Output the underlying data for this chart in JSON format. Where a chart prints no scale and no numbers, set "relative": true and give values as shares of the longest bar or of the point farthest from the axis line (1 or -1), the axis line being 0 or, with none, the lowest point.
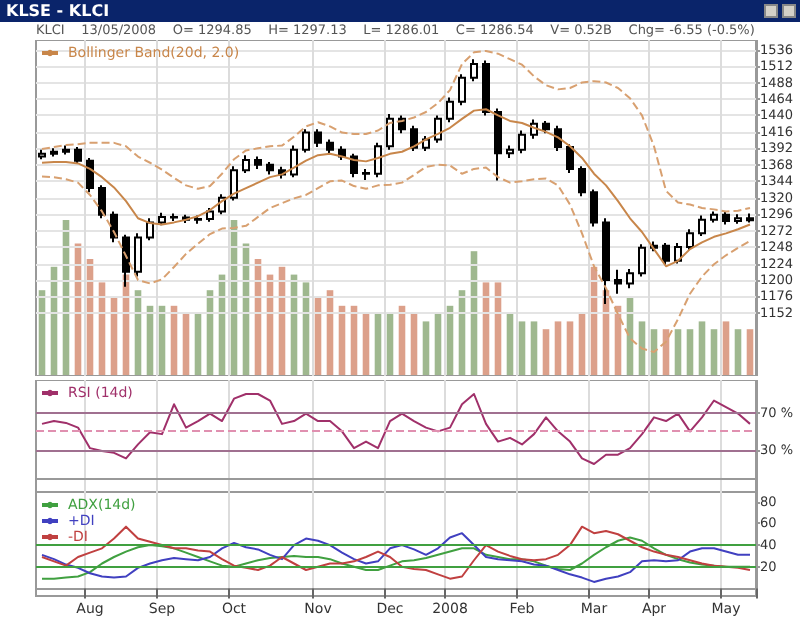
{
  "chart_data": [
    {
      "type": "candlestick",
      "title": "KLSE - KLCI",
      "subtitle": "KLCI    13/05/2008    O= 1294.85    H= 1297.13    L= 1286.01    C= 1286.54    V= 0.52B    Chg= -6.55 (-0.5%)",
      "color": "#000000",
      "marker": "none",
      "grid": true,
      "legend": "top left",
      "tick_labels": "y",
      "categories": [
        null,
        null,
        null,
        null,
        null,
        null,
        null,
        null,
        null,
        null,
        null,
        null,
        null,
        null,
        null,
        null,
        null,
        null,
        null,
        null,
        null,
        null,
        null,
        null,
        null,
        null,
        null,
        null,
        null,
        null,
        null,
        null,
        null,
        null,
        null,
        null,
        null,
        null,
        null,
        null,
        null,
        null,
        null,
        null,
        null,
        null,
        null,
        null,
        null,
        null,
        null,
        null,
        null,
        null,
        null,
        null,
        null,
        null,
        null,
        null
      ],
      "ylim": [
        1060,
        1550
      ],
      "yticks": [
        1152,
        1176,
        1200,
        1224,
        1248,
        1272,
        1296,
        1320,
        1344,
        1368,
        1392,
        1416,
        1440,
        1464,
        1488,
        1512,
        1536
      ],
      "ohlc": [
        [
          1380,
          1390,
          1376,
          1384
        ],
        [
          1384,
          1392,
          1380,
          1387
        ],
        [
          1387,
          1396,
          1383,
          1390
        ],
        [
          1390,
          1394,
          1370,
          1374
        ],
        [
          1374,
          1378,
          1328,
          1334
        ],
        [
          1334,
          1338,
          1290,
          1295
        ],
        [
          1295,
          1300,
          1255,
          1262
        ],
        [
          1262,
          1266,
          1190,
          1212
        ],
        [
          1212,
          1268,
          1205,
          1262
        ],
        [
          1262,
          1290,
          1258,
          1284
        ],
        [
          1284,
          1298,
          1280,
          1292
        ],
        [
          1292,
          1297,
          1286,
          1291
        ],
        [
          1291,
          1295,
          1283,
          1288
        ],
        [
          1288,
          1294,
          1282,
          1289
        ],
        [
          1289,
          1305,
          1285,
          1300
        ],
        [
          1300,
          1325,
          1296,
          1320
        ],
        [
          1320,
          1366,
          1316,
          1360
        ],
        [
          1360,
          1382,
          1356,
          1375
        ],
        [
          1375,
          1380,
          1362,
          1368
        ],
        [
          1368,
          1372,
          1354,
          1360
        ],
        [
          1360,
          1365,
          1348,
          1354
        ],
        [
          1354,
          1396,
          1350,
          1390
        ],
        [
          1390,
          1420,
          1386,
          1415
        ],
        [
          1415,
          1420,
          1394,
          1400
        ],
        [
          1400,
          1405,
          1385,
          1390
        ],
        [
          1390,
          1395,
          1375,
          1380
        ],
        [
          1380,
          1384,
          1350,
          1356
        ],
        [
          1356,
          1362,
          1346,
          1355
        ],
        [
          1355,
          1400,
          1350,
          1395
        ],
        [
          1395,
          1442,
          1390,
          1435
        ],
        [
          1435,
          1440,
          1414,
          1420
        ],
        [
          1420,
          1425,
          1388,
          1393
        ],
        [
          1393,
          1410,
          1388,
          1405
        ],
        [
          1405,
          1440,
          1400,
          1435
        ],
        [
          1435,
          1466,
          1430,
          1460
        ],
        [
          1460,
          1500,
          1455,
          1495
        ],
        [
          1495,
          1522,
          1490,
          1515
        ],
        [
          1515,
          1520,
          1440,
          1445
        ],
        [
          1445,
          1450,
          1345,
          1385
        ],
        [
          1385,
          1396,
          1378,
          1390
        ],
        [
          1390,
          1418,
          1385,
          1412
        ],
        [
          1412,
          1434,
          1406,
          1428
        ],
        [
          1428,
          1432,
          1414,
          1420
        ],
        [
          1420,
          1425,
          1388,
          1394
        ],
        [
          1394,
          1398,
          1356,
          1362
        ],
        [
          1362,
          1366,
          1322,
          1328
        ],
        [
          1328,
          1332,
          1278,
          1284
        ],
        [
          1284,
          1290,
          1165,
          1200
        ],
        [
          1200,
          1215,
          1180,
          1195
        ],
        [
          1195,
          1216,
          1188,
          1210
        ],
        [
          1210,
          1252,
          1205,
          1247
        ],
        [
          1247,
          1256,
          1242,
          1250
        ],
        [
          1250,
          1254,
          1222,
          1228
        ],
        [
          1228,
          1254,
          1224,
          1248
        ],
        [
          1248,
          1274,
          1244,
          1268
        ],
        [
          1268,
          1294,
          1264,
          1288
        ],
        [
          1288,
          1300,
          1284,
          1295
        ],
        [
          1295,
          1299,
          1281,
          1286
        ],
        [
          1286,
          1296,
          1282,
          1290
        ],
        [
          1290,
          1297,
          1284,
          1287
        ]
      ],
      "series": [
        {
          "type": "line",
          "name": "Bollinger Band(20d, 2.0)",
          "color": "#c8864a",
          "values": [
            1371,
            1372,
            1372,
            1370,
            1362,
            1350,
            1335,
            1315,
            1290,
            1283,
            1281,
            1284,
            1288,
            1293,
            1302,
            1315,
            1326,
            1334,
            1342,
            1350,
            1354,
            1364,
            1374,
            1382,
            1384,
            1380,
            1375,
            1373,
            1378,
            1384,
            1387,
            1395,
            1405,
            1413,
            1422,
            1435,
            1447,
            1449,
            1440,
            1432,
            1429,
            1422,
            1416,
            1408,
            1395,
            1378,
            1355,
            1338,
            1315,
            1290,
            1270,
            1245,
            1220,
            1228,
            1245,
            1255,
            1263,
            1268,
            1274,
            1281
          ]
        },
        {
          "type": "line",
          "color": "#d8a070",
          "line_style": "dashed",
          "values": [
            1391,
            1394,
            1397,
            1398,
            1400,
            1400,
            1400,
            1395,
            1380,
            1371,
            1361,
            1349,
            1338,
            1333,
            1337,
            1355,
            1376,
            1389,
            1392,
            1395,
            1396,
            1409,
            1424,
            1430,
            1424,
            1415,
            1413,
            1413,
            1418,
            1429,
            1432,
            1437,
            1445,
            1458,
            1477,
            1515,
            1532,
            1534,
            1530,
            1522,
            1514,
            1497,
            1484,
            1478,
            1480,
            1488,
            1490,
            1488,
            1480,
            1465,
            1440,
            1395,
            1330,
            1313,
            1310,
            1305,
            1303,
            1300,
            1301,
            1305
          ]
        },
        {
          "type": "line",
          "color": "#d8a070",
          "line_style": "dashed",
          "values": [
            1351,
            1350,
            1347,
            1342,
            1324,
            1300,
            1270,
            1235,
            1200,
            1195,
            1201,
            1219,
            1238,
            1253,
            1267,
            1275,
            1276,
            1279,
            1292,
            1305,
            1312,
            1319,
            1324,
            1334,
            1344,
            1345,
            1337,
            1333,
            1338,
            1339,
            1342,
            1353,
            1365,
            1368,
            1367,
            1355,
            1362,
            1364,
            1350,
            1342,
            1344,
            1347,
            1348,
            1338,
            1310,
            1268,
            1220,
            1188,
            1150,
            1115,
            1100,
            1095,
            1110,
            1143,
            1180,
            1205,
            1223,
            1236,
            1247,
            1257
          ]
        }
      ]
    },
    {
      "type": "bar",
      "relative": true,
      "tick_labels": false,
      "categories": [
        null,
        null,
        null,
        null,
        null,
        null,
        null,
        null,
        null,
        null,
        null,
        null,
        null,
        null,
        null,
        null,
        null,
        null,
        null,
        null,
        null,
        null,
        null,
        null,
        null,
        null,
        null,
        null,
        null,
        null,
        null,
        null,
        null,
        null,
        null,
        null,
        null,
        null,
        null,
        null,
        null,
        null,
        null,
        null,
        null,
        null,
        null,
        null,
        null,
        null,
        null,
        null,
        null,
        null,
        null,
        null,
        null,
        null,
        null,
        null
      ],
      "values": [
        0.55,
        0.7,
        1,
        0.85,
        0.75,
        0.6,
        0.5,
        0.65,
        0.55,
        0.45,
        0.45,
        0.45,
        0.4,
        0.4,
        0.55,
        0.65,
        1,
        0.85,
        0.75,
        0.65,
        0.7,
        0.65,
        0.6,
        0.5,
        0.55,
        0.45,
        0.45,
        0.4,
        0.4,
        0.4,
        0.45,
        0.4,
        0.35,
        0.4,
        0.45,
        0.55,
        0.8,
        0.6,
        0.6,
        0.4,
        0.35,
        0.35,
        0.3,
        0.35,
        0.35,
        0.4,
        0.7,
        0.55,
        0.45,
        0.5,
        0.35,
        0.3,
        0.3,
        0.3,
        0.3,
        0.35,
        0.3,
        0.35,
        0.3,
        0.3
      ],
      "colors": [
        "#9fb88f",
        "#9fb88f",
        "#9fb88f",
        "#dca08a",
        "#dca08a",
        "#dca08a",
        "#dca08a",
        "#dca08a",
        "#9fb88f",
        "#9fb88f",
        "#9fb88f",
        "#dca08a",
        "#dca08a",
        "#9fb88f",
        "#9fb88f",
        "#9fb88f",
        "#9fb88f",
        "#9fb88f",
        "#dca08a",
        "#dca08a",
        "#dca08a",
        "#9fb88f",
        "#9fb88f",
        "#dca08a",
        "#dca08a",
        "#dca08a",
        "#dca08a",
        "#dca08a",
        "#9fb88f",
        "#9fb88f",
        "#dca08a",
        "#dca08a",
        "#9fb88f",
        "#9fb88f",
        "#9fb88f",
        "#9fb88f",
        "#9fb88f",
        "#dca08a",
        "#dca08a",
        "#9fb88f",
        "#9fb88f",
        "#9fb88f",
        "#dca08a",
        "#dca08a",
        "#dca08a",
        "#dca08a",
        "#dca08a",
        "#dca08a",
        "#dca08a",
        "#9fb88f",
        "#9fb88f",
        "#9fb88f",
        "#dca08a",
        "#9fb88f",
        "#9fb88f",
        "#9fb88f",
        "#9fb88f",
        "#dca08a",
        "#9fb88f",
        "#dca08a"
      ]
    },
    {
      "type": "line",
      "marker": "none",
      "grid": "x",
      "legend": "top left",
      "tick_labels": "y",
      "categories": [
        null,
        null,
        null,
        null,
        null,
        null,
        null,
        null,
        null,
        null,
        null,
        null,
        null,
        null,
        null,
        null,
        null,
        null,
        null,
        null,
        null,
        null,
        null,
        null,
        null,
        null,
        null,
        null,
        null,
        null,
        null,
        null,
        null,
        null,
        null,
        null,
        null,
        null,
        null,
        null,
        null,
        null,
        null,
        null,
        null,
        null,
        null,
        null,
        null,
        null,
        null,
        null,
        null,
        null,
        null,
        null,
        null,
        null,
        null,
        null
      ],
      "ylim": [
        -15,
        105
      ],
      "yticks": [
        {
          "value": 30,
          "label": "30 %"
        },
        {
          "value": 70,
          "label": "70 %"
        }
      ],
      "ref_lines": [
        {
          "axis": "y",
          "value": 70,
          "color": "#a07090"
        },
        {
          "axis": "y",
          "value": 50,
          "color": "#e090b0",
          "line_style": "dashed"
        },
        {
          "axis": "y",
          "value": 30,
          "color": "#a07090"
        }
      ],
      "series": [
        {
          "name": "RSI (14d)",
          "color": "#a0306a",
          "values": [
            58,
            61,
            59,
            54,
            32,
            29,
            27,
            21,
            36,
            49,
            47,
            79,
            54,
            61,
            69,
            61,
            85,
            90,
            90,
            83,
            58,
            61,
            69,
            61,
            61,
            50,
            32,
            39,
            32,
            61,
            69,
            61,
            54,
            50,
            54,
            79,
            90,
            58,
            39,
            43,
            36,
            47,
            65,
            50,
            39,
            21,
            15,
            25,
            25,
            32,
            47,
            65,
            61,
            69,
            50,
            65,
            83,
            76,
            69,
            58
          ]
        }
      ]
    },
    {
      "type": "line",
      "marker": "none",
      "grid": "x",
      "legend": "top left",
      "categories": [
        null,
        null,
        null,
        null,
        "Aug",
        null,
        null,
        null,
        null,
        null,
        "Sep",
        null,
        null,
        null,
        null,
        null,
        "Oct",
        null,
        null,
        null,
        null,
        null,
        null,
        "Nov",
        null,
        null,
        null,
        null,
        null,
        "Dec",
        null,
        null,
        null,
        null,
        "2008",
        null,
        null,
        null,
        null,
        null,
        "Feb",
        null,
        null,
        null,
        null,
        null,
        "Mar",
        null,
        null,
        null,
        null,
        "Apr",
        null,
        null,
        null,
        null,
        null,
        "May",
        null,
        null
      ],
      "ylim": [
        -7,
        89
      ],
      "yticks": [
        20,
        40,
        60,
        80
      ],
      "ref_lines": [
        {
          "axis": "y",
          "value": 40,
          "color": "#40a040"
        },
        {
          "axis": "y",
          "value": 20,
          "color": "#40a040"
        }
      ],
      "series": [
        {
          "name": "ADX(14d)",
          "color": "#40a040",
          "values": [
            9,
            9,
            10,
            11,
            15,
            23,
            29,
            34,
            38,
            40,
            39,
            37,
            33,
            29,
            25,
            21,
            20,
            23,
            26,
            28,
            29,
            30,
            29,
            29,
            27,
            23,
            20,
            17,
            17,
            21,
            25,
            26,
            28,
            31,
            34,
            37,
            37,
            31,
            29,
            27,
            27,
            25,
            21,
            18,
            17,
            23,
            31,
            38,
            44,
            47,
            44,
            37,
            31,
            27,
            24,
            22,
            21,
            20,
            20,
            20
          ]
        },
        {
          "name": "+DI",
          "color": "#4040c0",
          "values": [
            31,
            27,
            22,
            19,
            14,
            11,
            10,
            11,
            19,
            23,
            26,
            28,
            27,
            26,
            29,
            37,
            42,
            38,
            36,
            31,
            27,
            40,
            46,
            44,
            40,
            33,
            27,
            23,
            25,
            37,
            40,
            36,
            31,
            37,
            47,
            51,
            40,
            29,
            27,
            26,
            25,
            22,
            21,
            17,
            13,
            10,
            6,
            9,
            11,
            15,
            25,
            26,
            25,
            26,
            34,
            37,
            37,
            34,
            31,
            31
          ]
        },
        {
          "name": "-DI",
          "color": "#c04040",
          "values": [
            29,
            25,
            21,
            29,
            33,
            37,
            46,
            57,
            46,
            43,
            40,
            37,
            37,
            35,
            34,
            27,
            21,
            19,
            17,
            21,
            29,
            23,
            17,
            20,
            23,
            23,
            25,
            29,
            34,
            29,
            20,
            18,
            17,
            13,
            9,
            11,
            26,
            40,
            34,
            30,
            27,
            26,
            27,
            31,
            40,
            57,
            51,
            53,
            50,
            44,
            38,
            34,
            31,
            29,
            26,
            23,
            21,
            20,
            19,
            17
          ]
        }
      ]
    }
  ]
}
